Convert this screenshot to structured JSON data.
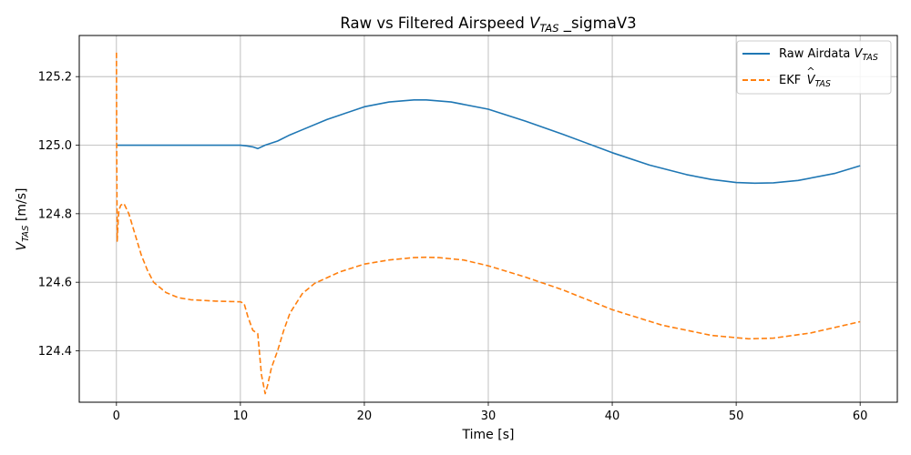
{
  "chart_data": {
    "type": "line",
    "title": {
      "prefix": "Raw vs Filtered Airspeed ",
      "var_main": "V",
      "var_sub": "TAS",
      "suffix": " _sigmaV3"
    },
    "xlabel": "Time [s]",
    "ylabel": {
      "var_main": "V",
      "var_sub": "TAS",
      "suffix": " [m/s]"
    },
    "xlim": [
      -3,
      63
    ],
    "ylim": [
      124.25,
      125.32
    ],
    "xticks": [
      0,
      10,
      20,
      30,
      40,
      50,
      60
    ],
    "xtick_labels": [
      "0",
      "10",
      "20",
      "30",
      "40",
      "50",
      "60"
    ],
    "yticks": [
      124.4,
      124.6,
      124.8,
      125.0,
      125.2
    ],
    "ytick_labels": [
      "124.4",
      "124.6",
      "124.8",
      "125.0",
      "125.2"
    ],
    "grid": true,
    "legend_position": "top-right",
    "series": [
      {
        "name": "Raw Airdata V_TAS",
        "legend": {
          "prefix": "Raw Airdata ",
          "var_main": "V",
          "var_sub": "TAS",
          "hat": false
        },
        "color": "#1f77b4",
        "style": "solid",
        "x": [
          0,
          2,
          5,
          8,
          10,
          10.5,
          11,
          11.4,
          12,
          13,
          14,
          15,
          17,
          20,
          22,
          24,
          25,
          27,
          30,
          33,
          36,
          40,
          43,
          46,
          48,
          50,
          51.5,
          53,
          55,
          58,
          60
        ],
        "y": [
          125.0,
          125.0,
          125.0,
          125.0,
          125.0,
          124.998,
          124.995,
          124.99,
          125.0,
          125.012,
          125.03,
          125.045,
          125.075,
          125.112,
          125.126,
          125.132,
          125.132,
          125.126,
          125.105,
          125.07,
          125.032,
          124.978,
          124.942,
          124.914,
          124.9,
          124.891,
          124.889,
          124.89,
          124.897,
          124.918,
          124.94
        ]
      },
      {
        "name": "EKF V_TAS hat",
        "legend": {
          "prefix": "EKF ",
          "var_main": "V",
          "var_sub": "TAS",
          "hat": true
        },
        "color": "#ff7f0e",
        "style": "dashed",
        "x": [
          0,
          0.02,
          0.06,
          0.1,
          0.15,
          0.2,
          0.35,
          0.6,
          1.0,
          1.5,
          2.0,
          2.5,
          3,
          4,
          5,
          6,
          8,
          10,
          10.3,
          10.6,
          11.0,
          11.4,
          11.7,
          12.0,
          12.2,
          12.5,
          13,
          13.5,
          14,
          15,
          16,
          18,
          20,
          22,
          24,
          25,
          26,
          28,
          30,
          33,
          36,
          40,
          44,
          48,
          51,
          53,
          56,
          60
        ],
        "y": [
          125.27,
          124.99,
          124.72,
          124.75,
          124.79,
          124.81,
          124.825,
          124.83,
          124.8,
          124.74,
          124.68,
          124.635,
          124.6,
          124.57,
          124.555,
          124.549,
          124.545,
          124.543,
          124.538,
          124.5,
          124.46,
          124.45,
          124.33,
          124.275,
          124.3,
          124.35,
          124.4,
          124.46,
          124.51,
          124.567,
          124.597,
          124.63,
          124.653,
          124.665,
          124.672,
          124.673,
          124.672,
          124.665,
          124.648,
          124.615,
          124.578,
          124.52,
          124.475,
          124.445,
          124.435,
          124.437,
          124.452,
          124.485
        ]
      }
    ]
  }
}
